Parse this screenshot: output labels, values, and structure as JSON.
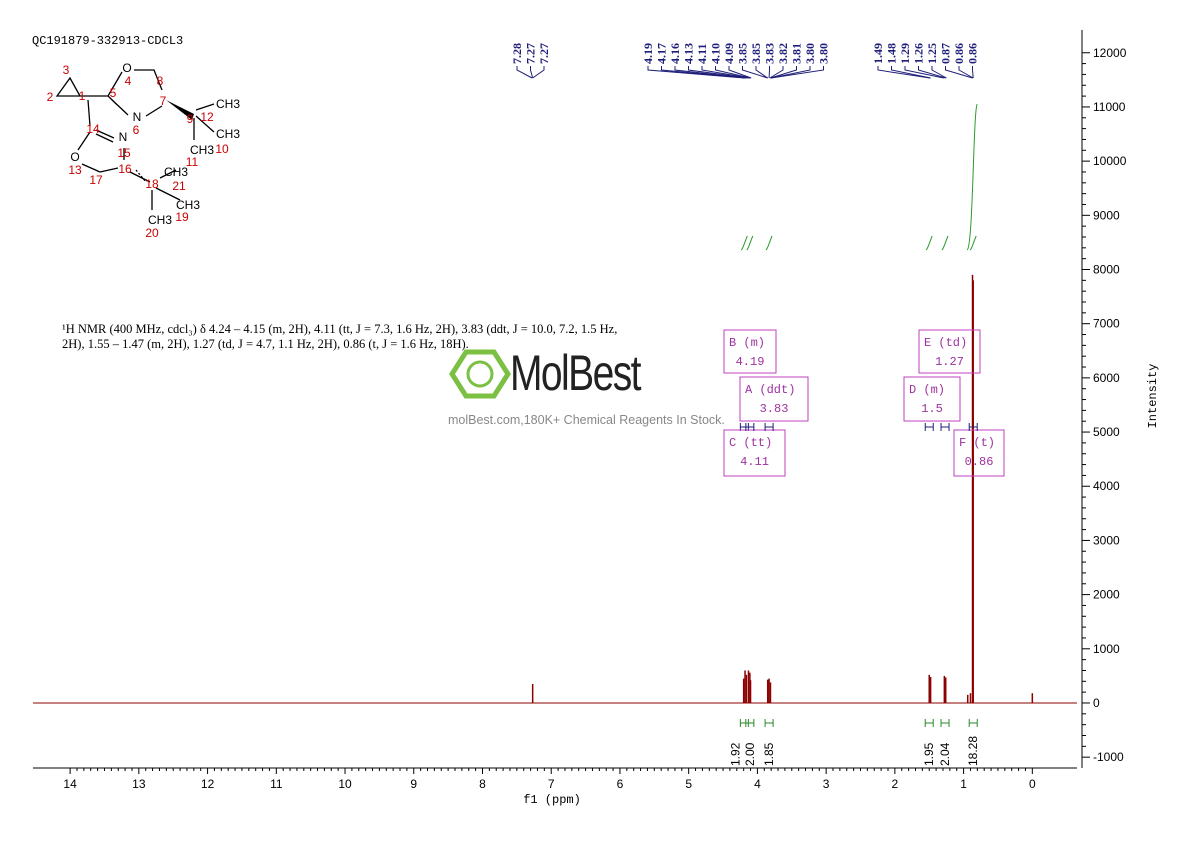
{
  "chart_data": {
    "type": "nmr",
    "title": "QC191879-332913-CDCL3",
    "description": "¹H NMR (400 MHz, cdcl₃) δ 4.24 – 4.15 (m, 2H), 4.11 (tt, J = 7.3, 1.6 Hz, 2H), 3.83 (ddt, J = 10.0, 7.2, 1.5 Hz, 2H), 1.55 – 1.47 (m, 2H), 1.27 (td, J = 4.7, 1.1 Hz, 2H), 0.86 (t, J = 1.6 Hz, 18H).",
    "watermark": "MolBest",
    "watermark_subtitle": "molBest.com,180K+ Chemical Reagents In Stock.",
    "x_label": "f1 (ppm)",
    "y_label": "Intensity",
    "xlim": [
      14.54,
      -0.65
    ],
    "xticks": [
      14,
      13,
      12,
      11,
      10,
      9,
      8,
      7,
      6,
      5,
      4,
      3,
      2,
      1,
      0
    ],
    "ylim": [
      -1200,
      12420
    ],
    "yticks": [
      12000,
      11000,
      10000,
      9000,
      8000,
      7000,
      6000,
      5000,
      4000,
      3000,
      2000,
      1000,
      0,
      -1000
    ],
    "x": [
      7.27,
      4.2,
      4.18,
      4.16,
      4.13,
      4.11,
      4.1,
      3.85,
      3.83,
      3.81,
      1.5,
      1.48,
      1.28,
      1.26,
      0.94,
      0.9,
      0.87,
      0.86,
      0.0
    ],
    "values": [
      350,
      450,
      600,
      520,
      600,
      560,
      420,
      430,
      450,
      380,
      520,
      480,
      500,
      470,
      150,
      180,
      7900,
      7800,
      180
    ],
    "color": "#8b0000",
    "peak_labels": [
      7.28,
      7.27,
      7.27,
      4.19,
      4.17,
      4.16,
      4.13,
      4.11,
      {
        "value": 4.1,
        "label": "4.10"
      },
      4.09,
      3.85,
      3.85,
      3.83,
      3.82,
      3.81,
      {
        "value": 3.8,
        "label": "3.80"
      },
      {
        "value": 3.8,
        "label": "3.80"
      },
      1.49,
      1.48,
      1.29,
      1.26,
      1.25,
      0.87,
      0.86,
      0.86
    ],
    "multiplets": [
      {
        "label": "B (m)",
        "shift": 4.19,
        "integral": 1.92
      },
      {
        "label": "C (tt)",
        "shift": 4.11,
        "integral": {
          "value": 2,
          "label": "2.00"
        }
      },
      {
        "label": "A (ddt)",
        "shift": 3.83,
        "integral": 1.85
      },
      {
        "label": "D (m)",
        "shift": 1.5,
        "integral": 1.95
      },
      {
        "label": "E (td)",
        "shift": 1.27,
        "integral": 2.04
      },
      {
        "label": "F (t)",
        "shift": 0.86,
        "integral": 18.28
      }
    ],
    "molecule_labels": [
      "O",
      "4",
      "8",
      "3",
      "2",
      "1",
      "5",
      "N",
      "7",
      "CH3",
      "9",
      "12",
      "CH3",
      "CH3",
      "10",
      "11",
      "14",
      "N",
      "6",
      "15",
      "O",
      "13",
      "17",
      "16",
      "18",
      "CH3",
      "21",
      "CH3",
      "19",
      "CH3",
      "20"
    ]
  }
}
